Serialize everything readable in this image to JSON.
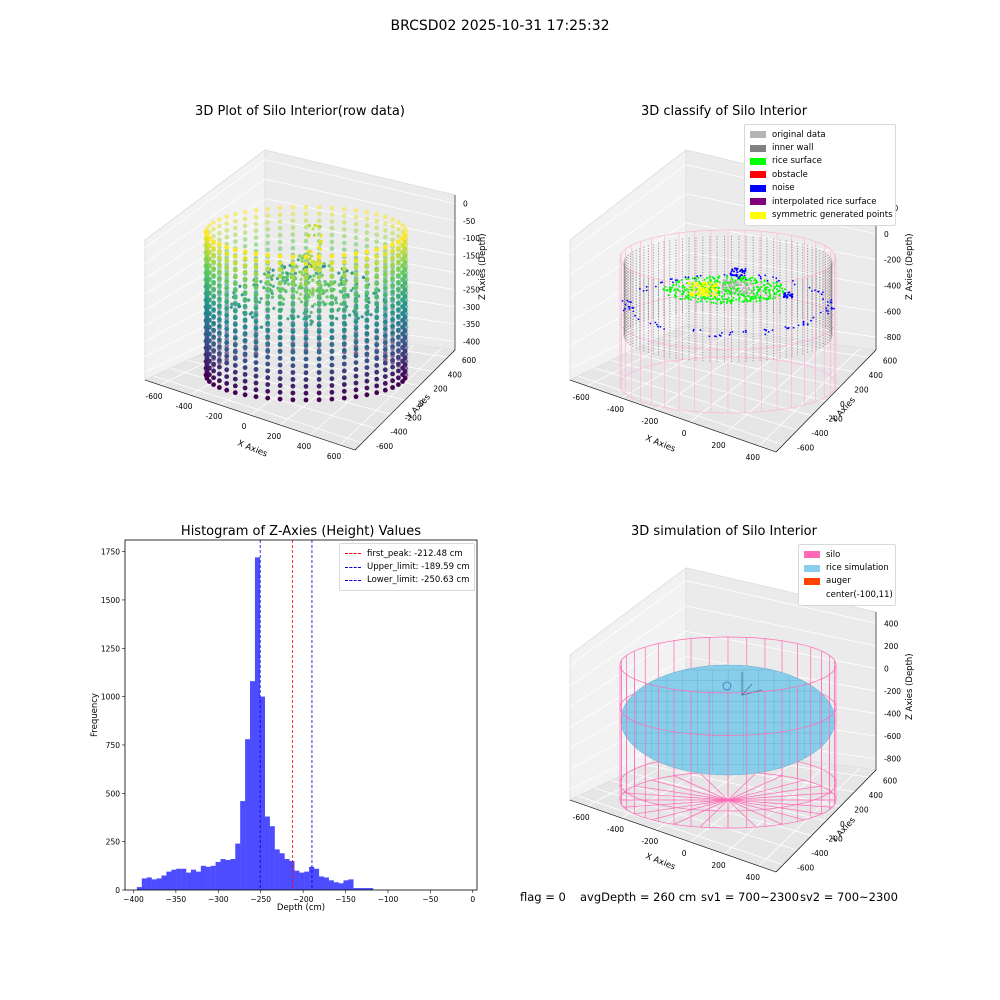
{
  "suptitle": "BRCSD02 2025-10-31 17:25:32",
  "status": {
    "flag": "flag = 0",
    "avg_depth": "avgDepth = 260 cm",
    "sv1": "sv1 = 700~2300",
    "sv2": "sv2 = 700~2300"
  },
  "chart_data": [
    {
      "type": "scatter",
      "title": "3D Plot of Silo Interior(row data)",
      "xlabel": "X Axies",
      "ylabel": "Y Axies",
      "zlabel": "Z Axies (Depth)",
      "xticks": [
        "-600",
        "-400",
        "-200",
        "0",
        "200",
        "400",
        "600"
      ],
      "yticks": [
        "-600",
        "-400",
        "-200",
        "0",
        "200",
        "400",
        "600"
      ],
      "zticks": [
        "0",
        "-50",
        "-100",
        "-150",
        "-200",
        "-250",
        "-300",
        "-350",
        "-400"
      ],
      "colormap": "viridis"
    },
    {
      "type": "scatter",
      "title": "3D classify of Silo Interior",
      "xlabel": "X Axies",
      "ylabel": "Y Axies",
      "zlabel": "Z Axies (Depth)",
      "xticks": [
        "-600",
        "-400",
        "-200",
        "0",
        "200",
        "400"
      ],
      "yticks": [
        "-600",
        "-400",
        "-200",
        "0",
        "200",
        "400",
        "600"
      ],
      "zticks": [
        "200",
        "0",
        "-200",
        "-400",
        "-600",
        "-800"
      ],
      "legend_position": "top-right",
      "legend": [
        {
          "label": "original data",
          "color": "#b4b4b4"
        },
        {
          "label": "inner wall",
          "color": "#808080"
        },
        {
          "label": "rice surface",
          "color": "#00ff00"
        },
        {
          "label": "obstacle",
          "color": "#ff0000"
        },
        {
          "label": "noise",
          "color": "#0000ff"
        },
        {
          "label": "interpolated rice surface",
          "color": "#800080"
        },
        {
          "label": "symmetric generated points",
          "color": "#ffff00"
        }
      ]
    },
    {
      "type": "bar",
      "title": "Histogram of Z-Axies (Height) Values",
      "xlabel": "Depth (cm)",
      "ylabel": "Frequency",
      "xlim": [
        -410,
        5
      ],
      "ylim": [
        0,
        1810
      ],
      "xticks": [
        -400,
        -350,
        -300,
        -250,
        -200,
        -150,
        -100,
        -50,
        0
      ],
      "yticks": [
        0,
        250,
        500,
        750,
        1000,
        1250,
        1500,
        1750
      ],
      "bar_color": "#4d4dff",
      "bin_start": -396,
      "bin_width": 5.8,
      "values": [
        15,
        60,
        65,
        55,
        60,
        75,
        95,
        105,
        110,
        110,
        90,
        105,
        95,
        125,
        120,
        125,
        145,
        160,
        155,
        160,
        240,
        460,
        780,
        1080,
        1720,
        1000,
        380,
        330,
        210,
        190,
        160,
        150,
        100,
        90,
        95,
        120,
        110,
        70,
        65,
        50,
        40,
        35,
        50,
        55,
        10,
        10,
        10,
        10
      ],
      "lines": [
        {
          "label": "first_peak: -212.48 cm",
          "value": -212.48,
          "color": "#ff0000"
        },
        {
          "label": "Upper_limit: -189.59 cm",
          "value": -189.59,
          "color": "#0000cc"
        },
        {
          "label": "Lower_limit: -250.63 cm",
          "value": -250.63,
          "color": "#0000cc"
        }
      ],
      "legend_position": "top-right"
    },
    {
      "type": "scatter",
      "title": "3D simulation of Silo Interior",
      "xlabel": "X Axies",
      "ylabel": "Y Axies",
      "zlabel": "Z Axies (Depth)",
      "xticks": [
        "-600",
        "-400",
        "-200",
        "0",
        "200",
        "400"
      ],
      "yticks": [
        "-600",
        "-400",
        "-200",
        "0",
        "200",
        "400",
        "600"
      ],
      "zticks": [
        "400",
        "200",
        "0",
        "-200",
        "-400",
        "-600",
        "-800"
      ],
      "legend_position": "top-right",
      "legend": [
        {
          "label": "silo",
          "color": "#ff69b4"
        },
        {
          "label": "rice simulation",
          "color": "#87ceeb"
        },
        {
          "label": "auger",
          "color": "#ff4500"
        },
        {
          "label": "center(-100,11)",
          "color": ""
        }
      ]
    }
  ]
}
